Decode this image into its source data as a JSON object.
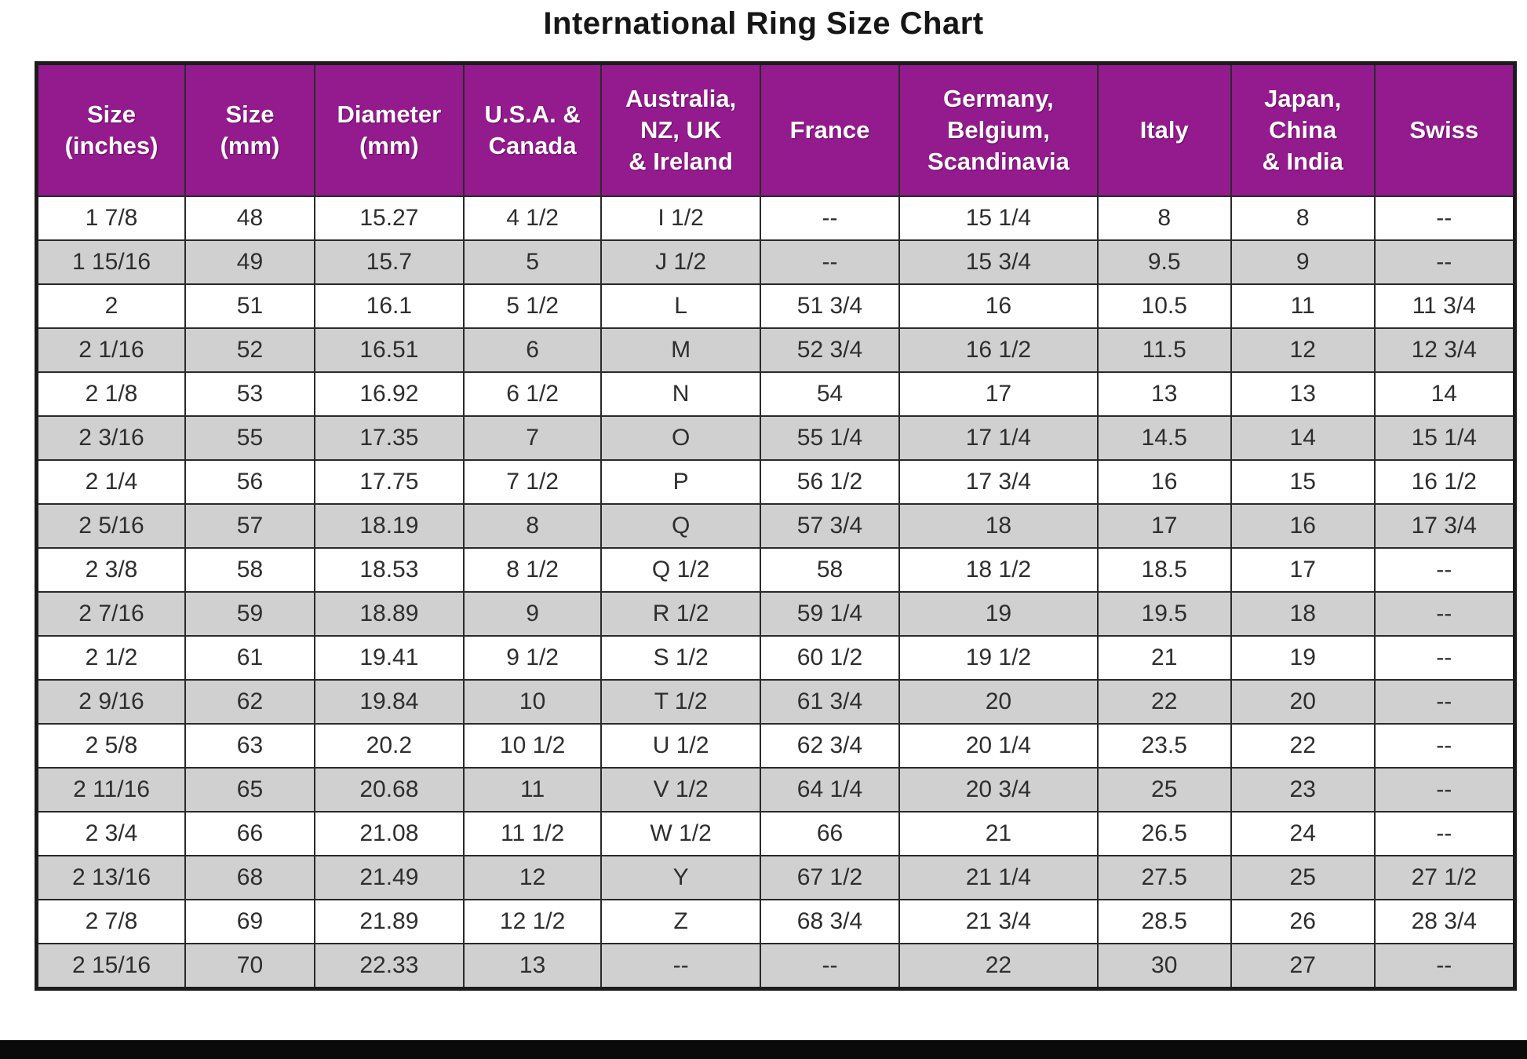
{
  "title": "International Ring Size Chart",
  "colors": {
    "header_bg": "#941b8d",
    "header_text": "#ffffff",
    "row_bg": "#ffffff",
    "row_alt_bg": "#d0d0d0",
    "border": "#2a2a2a",
    "title_text": "#161616",
    "bottom_bar": "#0a0a0a"
  },
  "chart_data": {
    "type": "table",
    "title": "International Ring Size Chart",
    "columns": [
      "Size\n(inches)",
      "Size\n(mm)",
      "Diameter\n(mm)",
      "U.S.A. &\nCanada",
      "Australia,\nNZ, UK\n& Ireland",
      "France",
      "Germany,\nBelgium,\nScandinavia",
      "Italy",
      "Japan,\nChina\n& India",
      "Swiss"
    ],
    "rows": [
      [
        "1 7/8",
        "48",
        "15.27",
        "4 1/2",
        "I 1/2",
        "--",
        "15 1/4",
        "8",
        "8",
        "--"
      ],
      [
        "1 15/16",
        "49",
        "15.7",
        "5",
        "J 1/2",
        "--",
        "15 3/4",
        "9.5",
        "9",
        "--"
      ],
      [
        "2",
        "51",
        "16.1",
        "5 1/2",
        "L",
        "51 3/4",
        "16",
        "10.5",
        "11",
        "11 3/4"
      ],
      [
        "2 1/16",
        "52",
        "16.51",
        "6",
        "M",
        "52 3/4",
        "16 1/2",
        "11.5",
        "12",
        "12 3/4"
      ],
      [
        "2 1/8",
        "53",
        "16.92",
        "6 1/2",
        "N",
        "54",
        "17",
        "13",
        "13",
        "14"
      ],
      [
        "2 3/16",
        "55",
        "17.35",
        "7",
        "O",
        "55 1/4",
        "17 1/4",
        "14.5",
        "14",
        "15 1/4"
      ],
      [
        "2 1/4",
        "56",
        "17.75",
        "7 1/2",
        "P",
        "56 1/2",
        "17 3/4",
        "16",
        "15",
        "16 1/2"
      ],
      [
        "2 5/16",
        "57",
        "18.19",
        "8",
        "Q",
        "57 3/4",
        "18",
        "17",
        "16",
        "17 3/4"
      ],
      [
        "2 3/8",
        "58",
        "18.53",
        "8 1/2",
        "Q 1/2",
        "58",
        "18 1/2",
        "18.5",
        "17",
        "--"
      ],
      [
        "2 7/16",
        "59",
        "18.89",
        "9",
        "R 1/2",
        "59 1/4",
        "19",
        "19.5",
        "18",
        "--"
      ],
      [
        "2 1/2",
        "61",
        "19.41",
        "9 1/2",
        "S 1/2",
        "60 1/2",
        "19 1/2",
        "21",
        "19",
        "--"
      ],
      [
        "2 9/16",
        "62",
        "19.84",
        "10",
        "T 1/2",
        "61 3/4",
        "20",
        "22",
        "20",
        "--"
      ],
      [
        "2 5/8",
        "63",
        "20.2",
        "10 1/2",
        "U 1/2",
        "62 3/4",
        "20 1/4",
        "23.5",
        "22",
        "--"
      ],
      [
        "2 11/16",
        "65",
        "20.68",
        "11",
        "V 1/2",
        "64 1/4",
        "20 3/4",
        "25",
        "23",
        "--"
      ],
      [
        "2 3/4",
        "66",
        "21.08",
        "11 1/2",
        "W 1/2",
        "66",
        "21",
        "26.5",
        "24",
        "--"
      ],
      [
        "2 13/16",
        "68",
        "21.49",
        "12",
        "Y",
        "67 1/2",
        "21 1/4",
        "27.5",
        "25",
        "27 1/2"
      ],
      [
        "2 7/8",
        "69",
        "21.89",
        "12 1/2",
        "Z",
        "68 3/4",
        "21 3/4",
        "28.5",
        "26",
        "28 3/4"
      ],
      [
        "2 15/16",
        "70",
        "22.33",
        "13",
        "--",
        "--",
        "22",
        "30",
        "27",
        "--"
      ]
    ]
  }
}
